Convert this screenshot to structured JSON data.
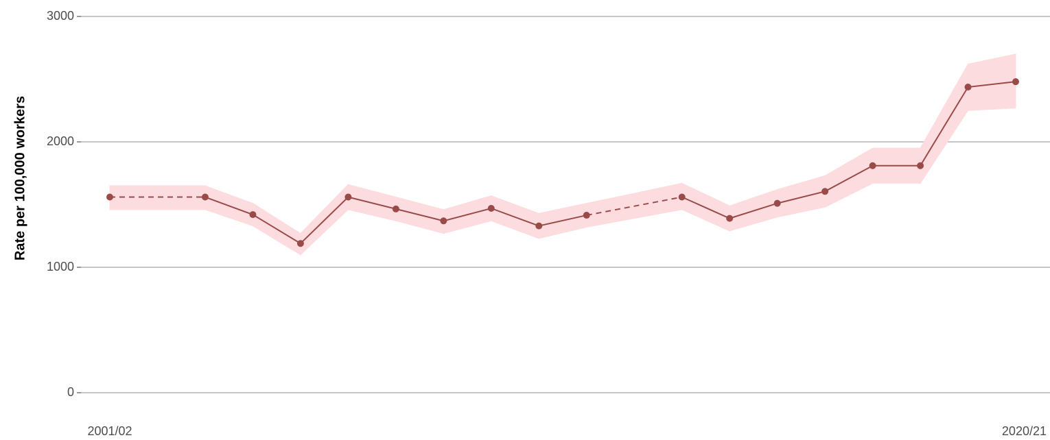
{
  "chart_data": {
    "type": "line",
    "y_label": "Rate per 100,000 workers",
    "categories": [
      "2001/02",
      null,
      null,
      null,
      null,
      null,
      null,
      null,
      null,
      null,
      null,
      null,
      null,
      null,
      null,
      null,
      null,
      null,
      null,
      "2020/21"
    ],
    "values": [
      1560,
      null,
      1560,
      1420,
      1190,
      1560,
      1465,
      1370,
      1470,
      1330,
      1415,
      null,
      1560,
      1390,
      1510,
      1605,
      1810,
      1810,
      2437,
      2480
    ],
    "upper": [
      1650,
      null,
      1650,
      1510,
      1270,
      1660,
      1560,
      1460,
      1570,
      1430,
      1510,
      null,
      1670,
      1490,
      1620,
      1730,
      1950,
      1950,
      2620,
      2700
    ],
    "lower": [
      1460,
      null,
      1460,
      1330,
      1100,
      1460,
      1370,
      1270,
      1370,
      1230,
      1320,
      null,
      1460,
      1290,
      1400,
      1480,
      1670,
      1670,
      2250,
      2270
    ],
    "color": "#9a4a48",
    "band_color": "#fcdcde",
    "ylim": [
      0,
      3000
    ],
    "yticks": [
      0,
      1000,
      2000,
      3000
    ],
    "grid": true
  }
}
